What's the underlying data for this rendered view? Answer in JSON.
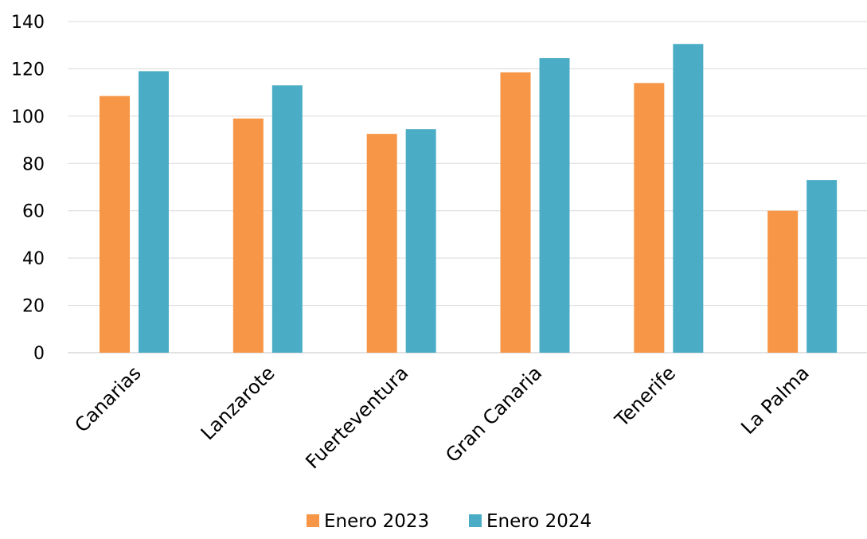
{
  "chart_data": {
    "type": "bar",
    "categories": [
      "Canarias",
      "Lanzarote",
      "Fuerteventura",
      "Gran Canaria",
      "Tenerife",
      "La Palma"
    ],
    "series": [
      {
        "name": "Enero 2023",
        "color": "#f79646",
        "values": [
          108.5,
          99,
          92.5,
          118.5,
          114,
          60
        ]
      },
      {
        "name": "Enero 2024",
        "color": "#4bacc6",
        "values": [
          119,
          113,
          94.5,
          124.5,
          130.5,
          73
        ]
      }
    ],
    "ylim": [
      0,
      140
    ],
    "yticks": [
      "0",
      "20",
      "40",
      "60",
      "80",
      "100",
      "120",
      "140"
    ],
    "grid": true,
    "legend_position": "bottom",
    "gridline_color": "#d9d9d9"
  }
}
